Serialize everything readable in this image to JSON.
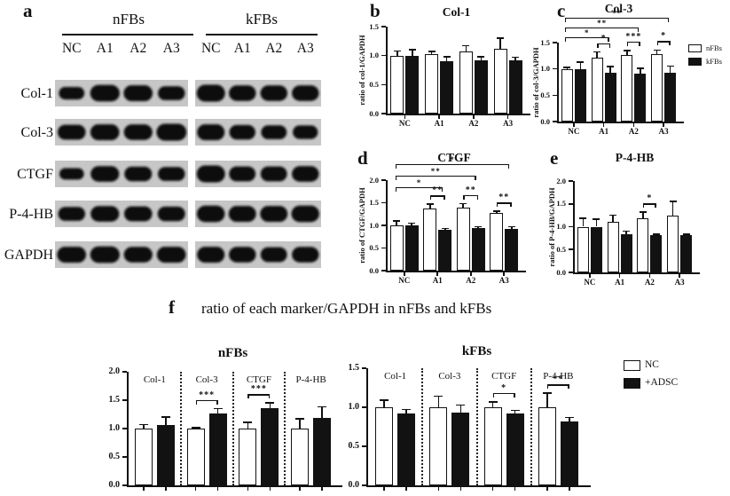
{
  "figure": {
    "panel_letters": {
      "a": "a",
      "b": "b",
      "c": "c",
      "d": "d",
      "e": "e",
      "f": "f"
    },
    "panel_f_caption": "ratio of each marker/GAPDH in nFBs and kFBs"
  },
  "colors": {
    "bar_white": "#ffffff",
    "bar_black": "#121212",
    "axis": "#111111",
    "blot_bg": "#c8c8c8"
  },
  "blot": {
    "groups": [
      "nFBs",
      "kFBs"
    ],
    "lanes": [
      "NC",
      "A1",
      "A2",
      "A3"
    ],
    "rows": [
      {
        "marker": "Col-1",
        "bands": [
          [
            0.55,
            0.95,
            0.9,
            0.7
          ],
          [
            1.0,
            0.85,
            0.85,
            0.85
          ]
        ]
      },
      {
        "marker": "Col-3",
        "bands": [
          [
            0.8,
            0.9,
            0.85,
            1.0
          ],
          [
            0.9,
            0.75,
            0.7,
            0.65
          ]
        ]
      },
      {
        "marker": "CTGF",
        "bands": [
          [
            0.45,
            0.85,
            0.75,
            0.7
          ],
          [
            1.0,
            0.8,
            0.8,
            0.85
          ]
        ]
      },
      {
        "marker": "P-4-HB",
        "bands": [
          [
            0.7,
            0.85,
            0.8,
            0.75
          ],
          [
            0.95,
            0.9,
            0.9,
            0.95
          ]
        ]
      },
      {
        "marker": "GAPDH",
        "bands": [
          [
            0.9,
            0.95,
            0.85,
            0.9
          ],
          [
            0.9,
            0.85,
            0.8,
            0.85
          ]
        ]
      }
    ]
  },
  "legend_f": {
    "items": [
      {
        "label": "NC",
        "fill": "white"
      },
      {
        "label": "+ADSC",
        "fill": "black"
      }
    ]
  },
  "chart_data": [
    {
      "id": "col1",
      "panel": "b",
      "type": "bar",
      "title": "Col-1",
      "ylabel": "ratio of col-1/GAPDH",
      "categories": [
        "NC",
        "A1",
        "A2",
        "A3"
      ],
      "ylim": [
        0,
        1.5
      ],
      "yticks": [
        0,
        0.5,
        1,
        1.5
      ],
      "series": [
        {
          "name": "nFBs",
          "fill": "white",
          "values": [
            1.0,
            1.02,
            1.07,
            1.12
          ],
          "errors": [
            0.08,
            0.05,
            0.1,
            0.18
          ]
        },
        {
          "name": "kFBs",
          "fill": "black",
          "values": [
            1.0,
            0.9,
            0.92,
            0.92
          ],
          "errors": [
            0.1,
            0.08,
            0.06,
            0.05
          ]
        }
      ],
      "pair_significance": [],
      "span_significance": []
    },
    {
      "id": "col3",
      "panel": "c",
      "type": "bar",
      "title": "Col-3",
      "ylabel": "ratio of col-3/GAPDH",
      "categories": [
        "NC",
        "A1",
        "A2",
        "A3"
      ],
      "ylim": [
        0,
        1.5
      ],
      "yticks": [
        0,
        0.5,
        1,
        1.5
      ],
      "series": [
        {
          "name": "nFBs",
          "fill": "white",
          "values": [
            1.0,
            1.22,
            1.27,
            1.28
          ],
          "errors": [
            0.03,
            0.1,
            0.08,
            0.08
          ]
        },
        {
          "name": "kFBs",
          "fill": "black",
          "values": [
            1.0,
            0.92,
            0.91,
            0.93
          ],
          "errors": [
            0.13,
            0.12,
            0.1,
            0.12
          ]
        }
      ],
      "pair_significance": [
        {
          "category": "A1",
          "label": "*"
        },
        {
          "category": "A2",
          "label": "***"
        },
        {
          "category": "A3",
          "label": "*"
        }
      ],
      "span_significance": [
        {
          "from": "NC",
          "to": "A3",
          "label": "**"
        },
        {
          "from": "NC",
          "to": "A2",
          "label": "**"
        },
        {
          "from": "NC",
          "to": "A1",
          "label": "*"
        }
      ],
      "legend": [
        {
          "label": "nFBs",
          "fill": "white"
        },
        {
          "label": "kFBs",
          "fill": "black"
        }
      ]
    },
    {
      "id": "ctgf",
      "panel": "d",
      "type": "bar",
      "title": "CTGF",
      "ylabel": "ratio of CTGF/GAPDH",
      "categories": [
        "NC",
        "A1",
        "A2",
        "A3"
      ],
      "ylim": [
        0,
        2
      ],
      "yticks": [
        0,
        0.5,
        1,
        1.5,
        2
      ],
      "series": [
        {
          "name": "nFBs",
          "fill": "white",
          "values": [
            1.0,
            1.37,
            1.4,
            1.27
          ],
          "errors": [
            0.1,
            0.1,
            0.08,
            0.04
          ]
        },
        {
          "name": "kFBs",
          "fill": "black",
          "values": [
            1.0,
            0.9,
            0.94,
            0.92
          ],
          "errors": [
            0.05,
            0.03,
            0.03,
            0.05
          ]
        }
      ],
      "pair_significance": [
        {
          "category": "A1",
          "label": "**"
        },
        {
          "category": "A2",
          "label": "**"
        },
        {
          "category": "A3",
          "label": "**"
        }
      ],
      "span_significance": [
        {
          "from": "NC",
          "to": "A3",
          "label": "*"
        },
        {
          "from": "NC",
          "to": "A2",
          "label": "**"
        },
        {
          "from": "NC",
          "to": "A1",
          "label": "*"
        }
      ]
    },
    {
      "id": "p4hb",
      "panel": "e",
      "type": "bar",
      "title": "P-4-HB",
      "ylabel": "ratio of P-4-HB/GAPDH",
      "categories": [
        "NC",
        "A1",
        "A2",
        "A3"
      ],
      "ylim": [
        0,
        2
      ],
      "yticks": [
        0,
        0.5,
        1,
        1.5,
        2
      ],
      "series": [
        {
          "name": "nFBs",
          "fill": "white",
          "values": [
            1.0,
            1.1,
            1.18,
            1.25
          ],
          "errors": [
            0.18,
            0.15,
            0.14,
            0.3
          ]
        },
        {
          "name": "kFBs",
          "fill": "black",
          "values": [
            1.0,
            0.84,
            0.82,
            0.81
          ],
          "errors": [
            0.17,
            0.06,
            0.02,
            0.02
          ]
        }
      ],
      "pair_significance": [
        {
          "category": "A2",
          "label": "*"
        }
      ],
      "span_significance": []
    },
    {
      "id": "f_nfbs",
      "panel": "f",
      "type": "bar",
      "title": "nFBs",
      "ylabel": "",
      "categories": [
        "Col-1",
        "Col-3",
        "CTGF",
        "P-4-HB"
      ],
      "ylim": [
        0,
        2
      ],
      "yticks": [
        0,
        0.5,
        1,
        1.5,
        2
      ],
      "series": [
        {
          "name": "NC",
          "fill": "white",
          "values": [
            1.0,
            1.0,
            1.0,
            1.0
          ],
          "errors": [
            0.07,
            0.02,
            0.11,
            0.17
          ]
        },
        {
          "name": "+ADSC",
          "fill": "black",
          "values": [
            1.07,
            1.27,
            1.36,
            1.19
          ],
          "errors": [
            0.13,
            0.08,
            0.09,
            0.19
          ]
        }
      ],
      "pair_significance": [
        {
          "category": "Col-3",
          "label": "***"
        },
        {
          "category": "CTGF",
          "label": "***"
        }
      ],
      "span_significance": [],
      "category_labels_inside": true
    },
    {
      "id": "f_kfbs",
      "panel": "f",
      "type": "bar",
      "title": "kFBs",
      "ylabel": "",
      "categories": [
        "Col-1",
        "Col-3",
        "CTGF",
        "P-4-HB"
      ],
      "ylim": [
        0,
        1.5
      ],
      "yticks": [
        0,
        0.5,
        1,
        1.5
      ],
      "series": [
        {
          "name": "NC",
          "fill": "white",
          "values": [
            1.0,
            1.0,
            1.0,
            1.0
          ],
          "errors": [
            0.09,
            0.14,
            0.07,
            0.18
          ]
        },
        {
          "name": "+ADSC",
          "fill": "black",
          "values": [
            0.92,
            0.93,
            0.92,
            0.82
          ],
          "errors": [
            0.05,
            0.1,
            0.04,
            0.05
          ]
        }
      ],
      "pair_significance": [
        {
          "category": "CTGF",
          "label": "*"
        },
        {
          "category": "P-4-HB",
          "label": "**"
        }
      ],
      "span_significance": [],
      "category_labels_inside": true
    }
  ]
}
